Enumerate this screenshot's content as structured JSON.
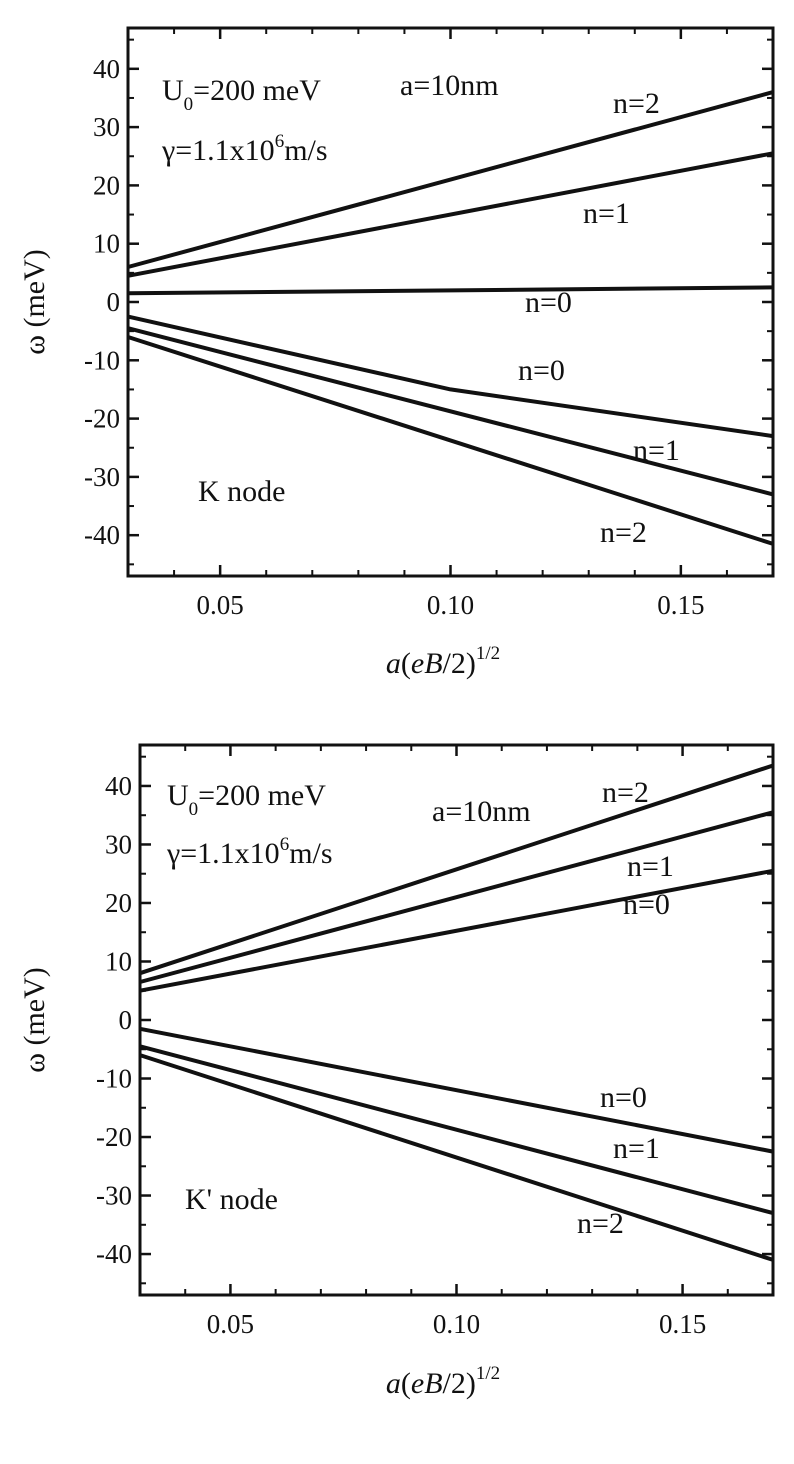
{
  "chart_data": [
    {
      "type": "line",
      "title": "",
      "annotations": {
        "u0_main": "U",
        "u0_sub": "0",
        "u0_rest": "=200 meV",
        "a_value": "a=10nm",
        "gamma_main": "γ=1.1x10",
        "gamma_sup": "6",
        "gamma_unit": "m/s",
        "node": "K node"
      },
      "xlabel": {
        "a": "a",
        "open": "(",
        "eB": "eB",
        "over2": "/2)",
        "exp": "1/2"
      },
      "ylabel": "ω (meV)",
      "xlim": [
        0.03,
        0.17
      ],
      "ylim": [
        -47,
        47
      ],
      "xticks": [
        0.05,
        0.1,
        0.15
      ],
      "xtick_labels": [
        "0.05",
        "0.10",
        "0.15"
      ],
      "yticks": [
        40,
        30,
        20,
        10,
        0,
        -10,
        -20,
        -30,
        -40
      ],
      "ytick_labels": [
        "40",
        "30",
        "20",
        "10",
        "0",
        "-10",
        "-20",
        "-30",
        "-40"
      ],
      "series": [
        {
          "label": "n=2",
          "x": [
            0.03,
            0.17
          ],
          "y": [
            6,
            36
          ]
        },
        {
          "label": "n=1",
          "x": [
            0.03,
            0.17
          ],
          "y": [
            4.5,
            25.5
          ]
        },
        {
          "label": "n=0",
          "x": [
            0.03,
            0.17
          ],
          "y": [
            1.5,
            2.5
          ]
        },
        {
          "label": "n=0",
          "x": [
            0.03,
            0.1,
            0.17
          ],
          "y": [
            -2.5,
            -15,
            -23
          ]
        },
        {
          "label": "n=1",
          "x": [
            0.03,
            0.17
          ],
          "y": [
            -4.5,
            -33
          ]
        },
        {
          "label": "n=2",
          "x": [
            0.03,
            0.17
          ],
          "y": [
            -6,
            -41.5
          ]
        }
      ]
    },
    {
      "type": "line",
      "title": "",
      "annotations": {
        "u0_main": "U",
        "u0_sub": "0",
        "u0_rest": "=200 meV",
        "a_value": "a=10nm",
        "gamma_main": "γ=1.1x10",
        "gamma_sup": "6",
        "gamma_unit": "m/s",
        "node": "K' node"
      },
      "xlabel": {
        "a": "a",
        "open": "(",
        "eB": "eB",
        "over2": "/2)",
        "exp": "1/2"
      },
      "ylabel": "ω (meV)",
      "xlim": [
        0.03,
        0.17
      ],
      "ylim": [
        -47,
        47
      ],
      "xticks": [
        0.05,
        0.1,
        0.15
      ],
      "xtick_labels": [
        "0.05",
        "0.10",
        "0.15"
      ],
      "yticks": [
        40,
        30,
        20,
        10,
        0,
        -10,
        -20,
        -30,
        -40
      ],
      "ytick_labels": [
        "40",
        "30",
        "20",
        "10",
        "0",
        "-10",
        "-20",
        "-30",
        "-40"
      ],
      "series": [
        {
          "label": "n=2",
          "x": [
            0.03,
            0.17
          ],
          "y": [
            8,
            43.5
          ]
        },
        {
          "label": "n=1",
          "x": [
            0.03,
            0.17
          ],
          "y": [
            6.5,
            35.5
          ]
        },
        {
          "label": "n=0",
          "x": [
            0.03,
            0.17
          ],
          "y": [
            5,
            25.5
          ]
        },
        {
          "label": "n=0",
          "x": [
            0.03,
            0.1,
            0.17
          ],
          "y": [
            -1.5,
            -12,
            -22.5
          ]
        },
        {
          "label": "n=1",
          "x": [
            0.03,
            0.17
          ],
          "y": [
            -4.5,
            -33
          ]
        },
        {
          "label": "n=2",
          "x": [
            0.03,
            0.17
          ],
          "y": [
            -6,
            -41
          ]
        }
      ]
    }
  ]
}
